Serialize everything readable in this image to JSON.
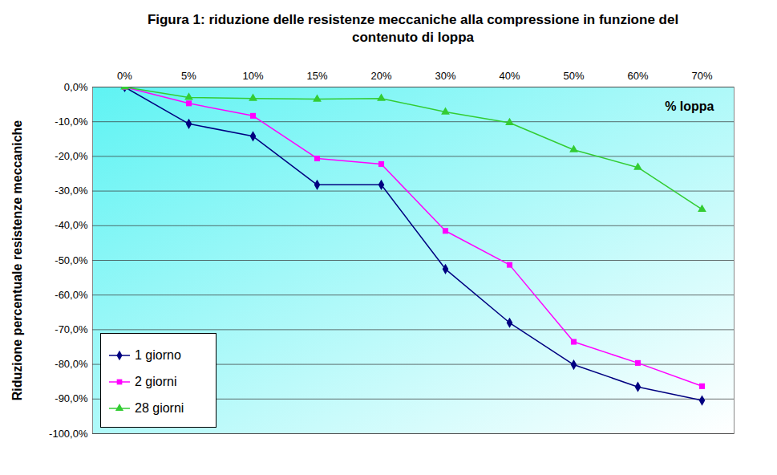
{
  "chart_data": {
    "type": "line",
    "title": "Figura 1: riduzione delle resistenze meccaniche alla compressione in funzione del contenuto di loppa",
    "y_label": "Riduzione percentuale resistenze meccaniche",
    "annotation": "% loppa",
    "categories": [
      "0%",
      "5%",
      "10%",
      "15%",
      "20%",
      "30%",
      "40%",
      "50%",
      "60%",
      "70%"
    ],
    "series": [
      {
        "name": "1 giorno",
        "color": "#000080",
        "marker": "diamond",
        "values": [
          0,
          -10.6,
          -14.2,
          -28.2,
          -28.2,
          -52.5,
          -68.0,
          -80.1,
          -86.5,
          -90.4
        ]
      },
      {
        "name": "2 giorni",
        "color": "#ff00ff",
        "marker": "square",
        "values": [
          0,
          -4.7,
          -8.3,
          -20.6,
          -22.2,
          -41.5,
          -51.3,
          -73.5,
          -79.6,
          -86.3
        ]
      },
      {
        "name": "28 giorni",
        "color": "#33cc33",
        "marker": "triangle",
        "values": [
          0,
          -3.0,
          -3.3,
          -3.5,
          -3.3,
          -7.2,
          -10.3,
          -18.1,
          -23.2,
          -35.3
        ]
      }
    ],
    "ylim": [
      -100,
      0
    ],
    "yticks": [
      {
        "value": 0,
        "label": "0,0%"
      },
      {
        "value": -10,
        "label": "-10,0%"
      },
      {
        "value": -20,
        "label": "-20,0%"
      },
      {
        "value": -30,
        "label": "-30,0%"
      },
      {
        "value": -40,
        "label": "-40,0%"
      },
      {
        "value": -50,
        "label": "-50,0%"
      },
      {
        "value": -60,
        "label": "-60,0%"
      },
      {
        "value": -70,
        "label": "-70,0%"
      },
      {
        "value": -80,
        "label": "-80,0%"
      },
      {
        "value": -90,
        "label": "-90,0%"
      },
      {
        "value": -100,
        "label": "-100,0%"
      }
    ],
    "grid": true,
    "legend": "bottom-left"
  }
}
